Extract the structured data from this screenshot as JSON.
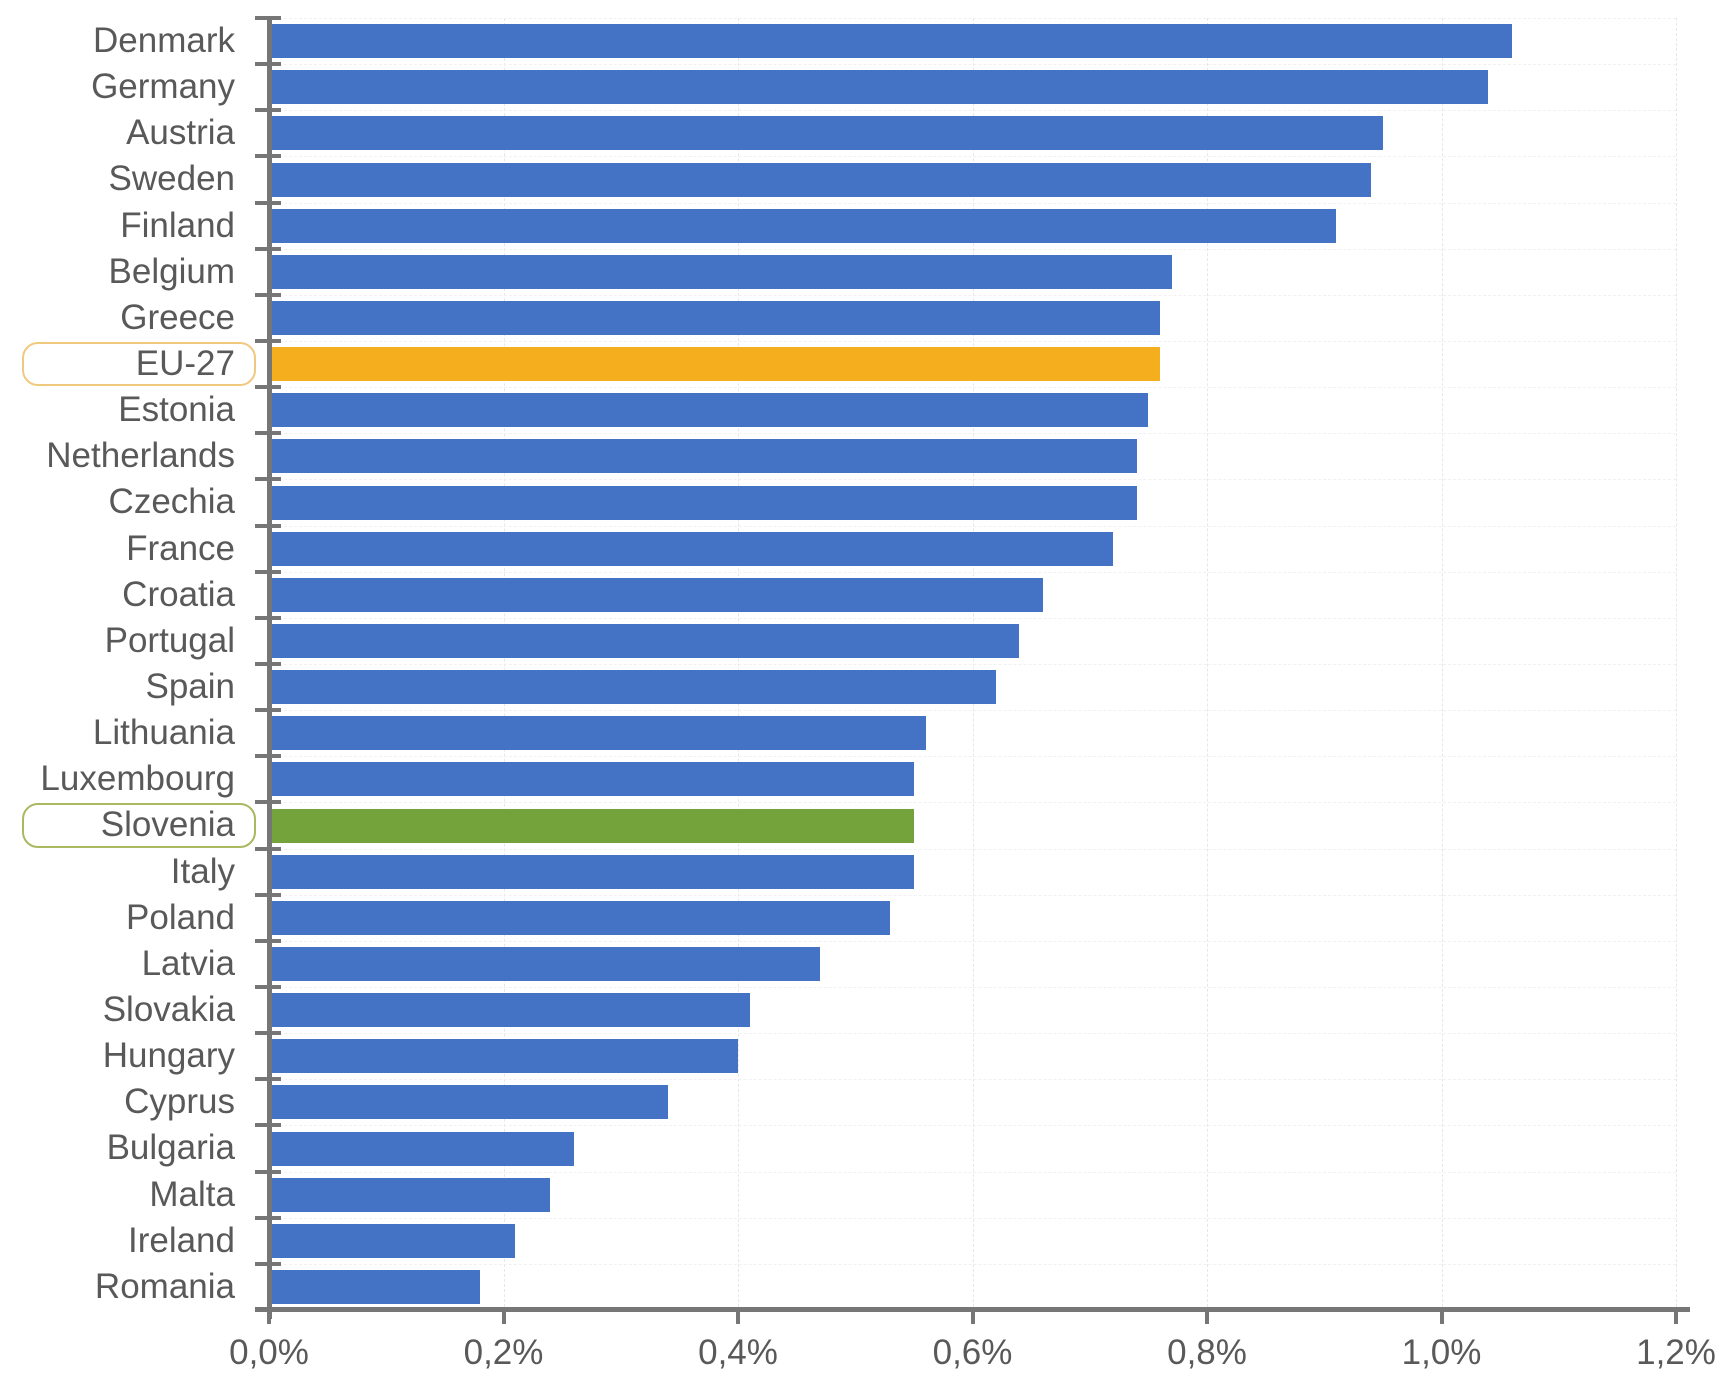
{
  "chart_data": {
    "type": "bar",
    "orientation": "horizontal",
    "title": "",
    "xlabel": "",
    "ylabel": "",
    "unit": "percent",
    "xlim": [
      0,
      1.2
    ],
    "x_tick_values": [
      0,
      0.2,
      0.4,
      0.6,
      0.8,
      1.0,
      1.2
    ],
    "x_tick_labels": [
      "0,0%",
      "0,2%",
      "0,4%",
      "0,6%",
      "0,8%",
      "1,0%",
      "1,2%"
    ],
    "grid": "major-vertical-dashed-and-row-boundary-dashed",
    "legend_position": "none",
    "categories": [
      "Denmark",
      "Germany",
      "Austria",
      "Sweden",
      "Finland",
      "Belgium",
      "Greece",
      "EU-27",
      "Estonia",
      "Netherlands",
      "Czechia",
      "France",
      "Croatia",
      "Portugal",
      "Spain",
      "Lithuania",
      "Luxembourg",
      "Slovenia",
      "Italy",
      "Poland",
      "Latvia",
      "Slovakia",
      "Hungary",
      "Cyprus",
      "Bulgaria",
      "Malta",
      "Ireland",
      "Romania"
    ],
    "values": [
      1.06,
      1.04,
      0.95,
      0.94,
      0.91,
      0.77,
      0.76,
      0.76,
      0.75,
      0.74,
      0.74,
      0.72,
      0.66,
      0.64,
      0.62,
      0.56,
      0.55,
      0.55,
      0.55,
      0.53,
      0.47,
      0.41,
      0.4,
      0.34,
      0.26,
      0.24,
      0.21,
      0.18
    ],
    "highlights": [
      {
        "category": "EU-27",
        "bar_color": "#F5AE1D",
        "label_box_border_color": "#F0C97E"
      },
      {
        "category": "Slovenia",
        "bar_color": "#74A23B",
        "label_box_border_color": "#A9B95F"
      }
    ]
  },
  "styles": {
    "default_bar_color": "#4472C4",
    "axis_color": "#767676",
    "text_color": "#595959",
    "vertical_grid_color": "#E7E7E7",
    "row_grid_color": "#F1F1F1",
    "background_color": "#FFFFFF"
  }
}
